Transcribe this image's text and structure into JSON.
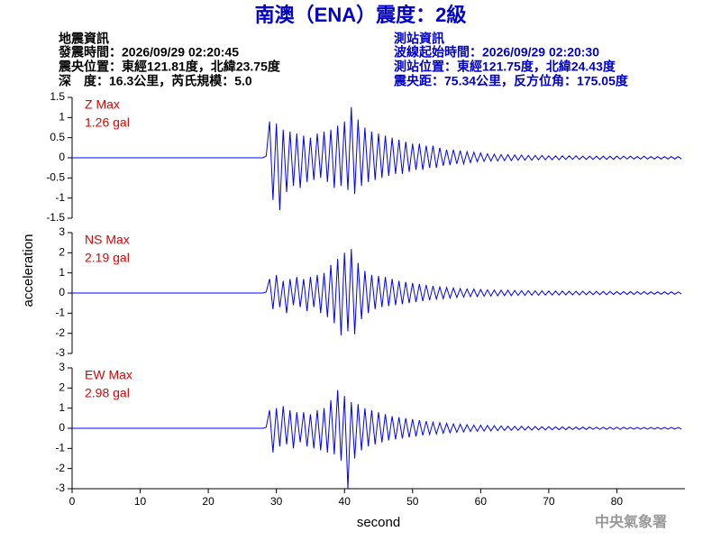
{
  "header": {
    "title": "南澳（ENA）震度：2級",
    "left": [
      "地震資訊",
      "發震時間：2026/09/29 02:20:45",
      "震央位置：東經121.81度，北緯23.75度",
      "深　度：16.3公里，芮氏規模：5.0"
    ],
    "right": [
      "測站資訊",
      "波線起始時間：2026/09/29 02:20:30",
      "測站位置：東經121.75度，北緯24.43度",
      "震央距：75.34公里，反方位角：175.05度"
    ]
  },
  "footer": "中央氣象署",
  "chart_data": [
    {
      "type": "line",
      "color": "#0000ff",
      "annotations": [
        "Z Max",
        "1.26 gal"
      ],
      "xlim": [
        0,
        90
      ],
      "ylim": [
        -1.5,
        1.5
      ],
      "yticks": [
        -1.5,
        -1,
        -0.5,
        0,
        0.5,
        1,
        1.5
      ],
      "x": [
        0,
        28,
        28.5,
        29,
        29.5,
        30,
        30.5,
        31,
        31.5,
        32,
        32.5,
        33,
        33.5,
        34,
        34.5,
        35,
        35.5,
        36,
        36.5,
        37,
        37.5,
        38,
        38.5,
        39,
        39.5,
        40,
        40.5,
        41,
        41.5,
        42,
        42.5,
        43,
        43.5,
        44,
        44.5,
        45,
        45.5,
        46,
        46.5,
        47,
        47.5,
        48,
        48.5,
        49,
        49.5,
        50,
        50.5,
        51,
        51.5,
        52,
        52.5,
        53,
        53.5,
        54,
        54.5,
        55,
        55.5,
        56,
        56.5,
        57,
        57.5,
        58,
        58.5,
        59,
        59.5,
        60,
        60.5,
        61,
        61.5,
        62,
        62.5,
        63,
        63.5,
        64,
        64.5,
        65,
        65.5,
        66,
        66.5,
        67,
        67.5,
        68,
        68.5,
        69,
        69.5,
        70,
        70.5,
        71,
        71.5,
        72,
        72.5,
        73,
        73.5,
        74,
        74.5,
        75,
        75.5,
        76,
        76.5,
        77,
        77.5,
        78,
        78.5,
        79,
        79.5,
        80,
        80.5,
        81,
        81.5,
        82,
        82.5,
        83,
        83.5,
        84,
        84.5,
        85,
        85.5,
        86,
        86.5,
        87,
        87.5,
        88,
        88.5,
        89,
        89.5
      ],
      "values": [
        0,
        0,
        0.04,
        0.9,
        -1.05,
        0.85,
        -1.3,
        0.7,
        -0.85,
        0.65,
        -0.7,
        0.6,
        -0.75,
        0.55,
        -0.6,
        0.5,
        -0.55,
        0.6,
        -0.5,
        0.65,
        -0.6,
        0.7,
        -0.75,
        0.8,
        -0.7,
        0.9,
        -0.8,
        1.26,
        -0.9,
        0.95,
        -0.7,
        0.75,
        -0.6,
        0.65,
        -0.55,
        0.6,
        -0.5,
        0.55,
        -0.45,
        0.5,
        -0.4,
        0.45,
        -0.4,
        0.4,
        -0.35,
        0.35,
        -0.3,
        0.35,
        -0.3,
        0.3,
        -0.25,
        0.3,
        -0.25,
        0.25,
        -0.2,
        0.2,
        -0.18,
        0.2,
        -0.15,
        0.18,
        -0.15,
        0.15,
        -0.12,
        0.14,
        -0.1,
        0.12,
        -0.09,
        0.1,
        -0.08,
        0.09,
        -0.08,
        0.08,
        -0.07,
        0.08,
        -0.07,
        0.07,
        -0.06,
        0.07,
        -0.06,
        0.06,
        -0.06,
        0.06,
        -0.05,
        0.06,
        -0.05,
        0.05,
        -0.05,
        0.05,
        -0.05,
        0.05,
        -0.04,
        0.05,
        -0.04,
        0.05,
        -0.04,
        0.04,
        -0.04,
        0.04,
        -0.04,
        0.04,
        -0.04,
        0.04,
        -0.04,
        0.04,
        -0.04,
        0.04,
        -0.03,
        0.04,
        -0.03,
        0.04,
        -0.03,
        0.03,
        -0.03,
        0.04,
        -0.03,
        0.03,
        -0.03,
        0.03,
        -0.03,
        0.03,
        -0.03,
        0.03,
        -0.03,
        0.03,
        -0.03
      ]
    },
    {
      "type": "line",
      "color": "#0000ff",
      "annotations": [
        "NS Max",
        "2.19 gal"
      ],
      "y_label": "acceleration",
      "xlim": [
        0,
        90
      ],
      "ylim": [
        -3,
        3
      ],
      "yticks": [
        -3,
        -2,
        -1,
        0,
        1,
        2,
        3
      ],
      "x": [
        0,
        28,
        28.5,
        29,
        29.5,
        30,
        30.5,
        31,
        31.5,
        32,
        32.5,
        33,
        33.5,
        34,
        34.5,
        35,
        35.5,
        36,
        36.5,
        37,
        37.5,
        38,
        38.5,
        39,
        39.5,
        40,
        40.5,
        41,
        41.5,
        42,
        42.5,
        43,
        43.5,
        44,
        44.5,
        45,
        45.5,
        46,
        46.5,
        47,
        47.5,
        48,
        48.5,
        49,
        49.5,
        50,
        50.5,
        51,
        51.5,
        52,
        52.5,
        53,
        53.5,
        54,
        54.5,
        55,
        55.5,
        56,
        56.5,
        57,
        57.5,
        58,
        58.5,
        59,
        59.5,
        60,
        60.5,
        61,
        61.5,
        62,
        62.5,
        63,
        63.5,
        64,
        64.5,
        65,
        65.5,
        66,
        66.5,
        67,
        67.5,
        68,
        68.5,
        69,
        69.5,
        70,
        70.5,
        71,
        71.5,
        72,
        72.5,
        73,
        73.5,
        74,
        74.5,
        75,
        75.5,
        76,
        76.5,
        77,
        77.5,
        78,
        78.5,
        79,
        79.5,
        80,
        80.5,
        81,
        81.5,
        82,
        82.5,
        83,
        83.5,
        84,
        84.5,
        85,
        85.5,
        86,
        86.5,
        87,
        87.5,
        88,
        88.5,
        89,
        89.5
      ],
      "values": [
        0,
        0,
        0.05,
        0.7,
        -0.8,
        0.9,
        -0.7,
        0.6,
        -1.0,
        0.7,
        -0.6,
        0.8,
        -0.7,
        0.7,
        -0.9,
        0.8,
        -0.7,
        0.9,
        -1.0,
        1.0,
        -1.2,
        1.4,
        -1.5,
        1.7,
        -2.1,
        2.0,
        -1.9,
        2.19,
        -2.05,
        1.5,
        -1.3,
        1.1,
        -1.0,
        0.9,
        -0.8,
        0.85,
        -0.7,
        0.8,
        -0.65,
        0.7,
        -0.6,
        0.6,
        -0.55,
        0.55,
        -0.5,
        0.5,
        -0.45,
        0.45,
        -0.4,
        0.4,
        -0.35,
        0.35,
        -0.3,
        0.3,
        -0.28,
        0.28,
        -0.25,
        0.25,
        -0.22,
        0.22,
        -0.2,
        0.2,
        -0.18,
        0.2,
        -0.18,
        0.18,
        -0.16,
        0.16,
        -0.15,
        0.15,
        -0.14,
        0.14,
        -0.13,
        0.14,
        -0.13,
        0.13,
        -0.12,
        0.12,
        -0.12,
        0.12,
        -0.11,
        0.11,
        -0.11,
        0.11,
        -0.1,
        0.1,
        -0.1,
        0.1,
        -0.1,
        0.1,
        -0.09,
        0.09,
        -0.09,
        0.09,
        -0.09,
        0.09,
        -0.08,
        0.08,
        -0.08,
        0.08,
        -0.08,
        0.08,
        -0.08,
        0.08,
        -0.07,
        0.07,
        -0.07,
        0.07,
        -0.07,
        0.07,
        -0.07,
        0.07,
        -0.06,
        0.07,
        -0.06,
        0.06,
        -0.06,
        0.06,
        -0.06,
        0.06,
        -0.06,
        0.06,
        -0.06,
        0.05,
        -0.05
      ]
    },
    {
      "type": "line",
      "color": "#0000ff",
      "annotations": [
        "EW Max",
        "2.98 gal"
      ],
      "x_label": "second",
      "xlim": [
        0,
        90
      ],
      "xticks": [
        0,
        10,
        20,
        30,
        40,
        50,
        60,
        70,
        80
      ],
      "ylim": [
        -3,
        3
      ],
      "yticks": [
        -3,
        -2,
        -1,
        0,
        1,
        2,
        3
      ],
      "x": [
        0,
        28,
        28.5,
        29,
        29.5,
        30,
        30.5,
        31,
        31.5,
        32,
        32.5,
        33,
        33.5,
        34,
        34.5,
        35,
        35.5,
        36,
        36.5,
        37,
        37.5,
        38,
        38.5,
        39,
        39.5,
        40,
        40.5,
        41,
        41.5,
        42,
        42.5,
        43,
        43.5,
        44,
        44.5,
        45,
        45.5,
        46,
        46.5,
        47,
        47.5,
        48,
        48.5,
        49,
        49.5,
        50,
        50.5,
        51,
        51.5,
        52,
        52.5,
        53,
        53.5,
        54,
        54.5,
        55,
        55.5,
        56,
        56.5,
        57,
        57.5,
        58,
        58.5,
        59,
        59.5,
        60,
        60.5,
        61,
        61.5,
        62,
        62.5,
        63,
        63.5,
        64,
        64.5,
        65,
        65.5,
        66,
        66.5,
        67,
        67.5,
        68,
        68.5,
        69,
        69.5,
        70,
        70.5,
        71,
        71.5,
        72,
        72.5,
        73,
        73.5,
        74,
        74.5,
        75,
        75.5,
        76,
        76.5,
        77,
        77.5,
        78,
        78.5,
        79,
        79.5,
        80,
        80.5,
        81,
        81.5,
        82,
        82.5,
        83,
        83.5,
        84,
        84.5,
        85,
        85.5,
        86,
        86.5,
        87,
        87.5,
        88,
        88.5,
        89,
        89.5
      ],
      "values": [
        0,
        0,
        0.05,
        0.9,
        -1.2,
        1.0,
        -0.9,
        1.1,
        -0.8,
        0.9,
        -1.0,
        0.8,
        -0.7,
        0.8,
        -0.9,
        0.7,
        -1.0,
        0.9,
        -1.1,
        1.0,
        -1.2,
        1.4,
        -1.3,
        1.9,
        -1.6,
        1.6,
        -2.98,
        1.3,
        -1.5,
        1.2,
        -1.1,
        1.0,
        -0.9,
        0.9,
        -0.8,
        0.8,
        -0.7,
        0.7,
        -0.6,
        0.6,
        -0.55,
        0.55,
        -0.5,
        0.5,
        -0.45,
        0.45,
        -0.4,
        0.4,
        -0.35,
        0.35,
        -0.3,
        0.3,
        -0.28,
        0.28,
        -0.25,
        0.25,
        -0.22,
        0.22,
        -0.2,
        0.2,
        -0.18,
        0.18,
        -0.16,
        0.16,
        -0.15,
        0.15,
        -0.14,
        0.14,
        -0.13,
        0.13,
        -0.12,
        0.12,
        -0.11,
        0.11,
        -0.1,
        0.1,
        -0.1,
        0.1,
        -0.09,
        0.09,
        -0.09,
        0.09,
        -0.08,
        0.08,
        -0.08,
        0.08,
        -0.07,
        0.07,
        -0.07,
        0.07,
        -0.07,
        0.07,
        -0.06,
        0.06,
        -0.06,
        0.06,
        -0.06,
        0.06,
        -0.05,
        0.05,
        -0.05,
        0.05,
        -0.05,
        0.05,
        -0.05,
        0.05,
        -0.05,
        0.05,
        -0.04,
        0.04,
        -0.04,
        0.04,
        -0.04,
        0.04,
        -0.04,
        0.04,
        -0.04,
        0.04,
        -0.04,
        0.04,
        -0.04,
        0.04,
        -0.04,
        0.04,
        -0.04
      ]
    }
  ]
}
